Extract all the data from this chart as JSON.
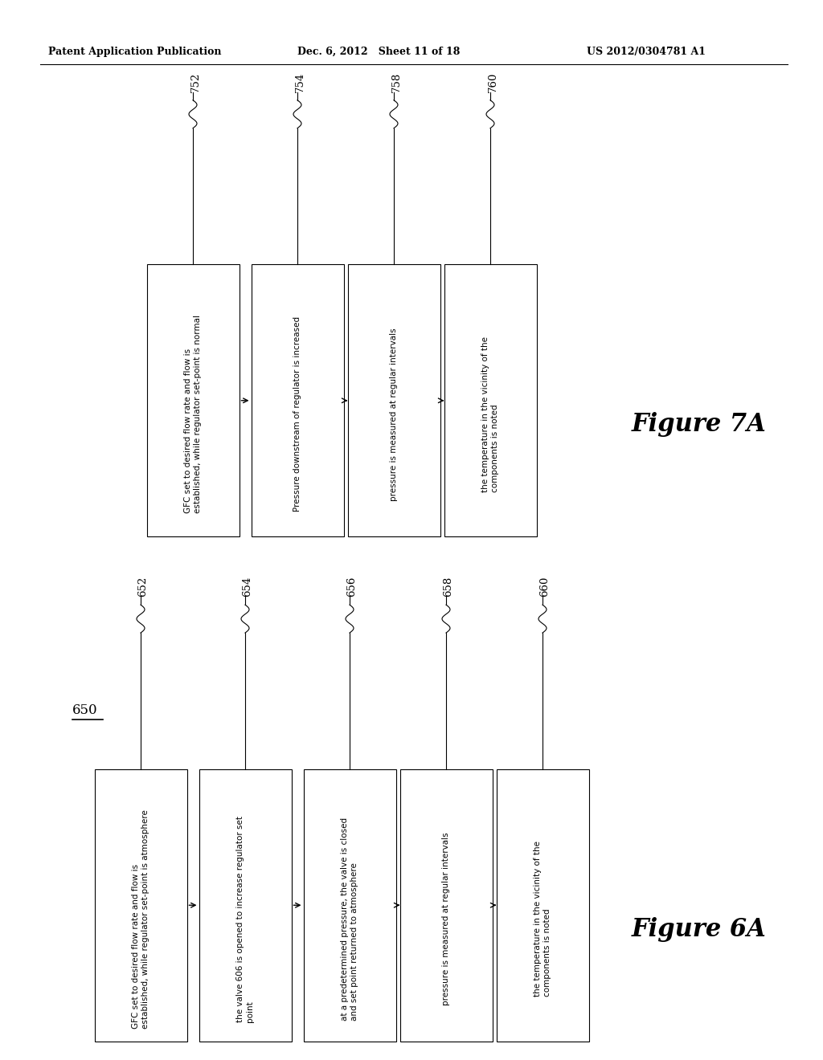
{
  "header_left": "Patent Application Publication",
  "header_mid": "Dec. 6, 2012   Sheet 11 of 18",
  "header_right": "US 2012/0304781 A1",
  "figure_6a": {
    "label": "Figure 6A",
    "diagram_label": "650",
    "boxes": [
      {
        "id": "652",
        "text": "GFC set to desired flow rate and flow is\nestablished, while regulator set-point is atmosphere"
      },
      {
        "id": "654",
        "text": "the valve 606 is opened to increase regulator set\npoint"
      },
      {
        "id": "656",
        "text": "at a predetermined pressure, the valve is closed\nand set point returned to atmosphere"
      },
      {
        "id": "658",
        "text": "pressure is measured at regular intervals"
      },
      {
        "id": "660",
        "text": "the temperature in the vicinity of the\ncomponents is noted"
      }
    ]
  },
  "figure_7a": {
    "label": "Figure 7A",
    "boxes": [
      {
        "id": "752",
        "text": "GFC set to desired flow rate and flow is\nestablished, while regulator set-point is normal"
      },
      {
        "id": "754",
        "text": "Pressure downstream of regulator is increased"
      },
      {
        "id": "758",
        "text": "pressure is measured at regular intervals"
      },
      {
        "id": "760",
        "text": "the temperature in the vicinity of the\ncomponents is noted"
      }
    ]
  },
  "bg_color": "#ffffff",
  "box_color": "#ffffff",
  "box_edge_color": "#000000",
  "text_color": "#000000",
  "line_color": "#000000"
}
